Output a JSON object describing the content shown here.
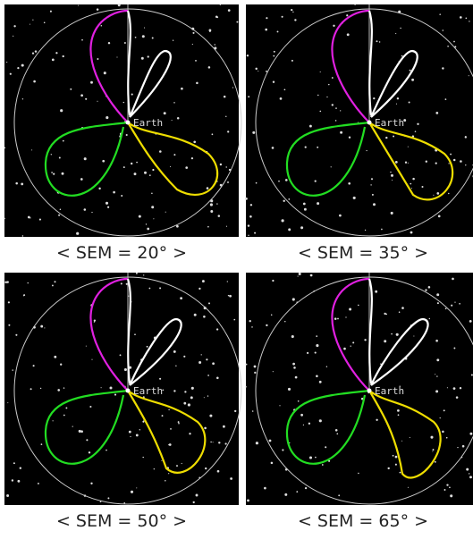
{
  "panels": [
    {
      "label": "Earth",
      "caption": "< SEM = 20° >"
    },
    {
      "label": "Earth",
      "caption": "< SEM = 35° >"
    },
    {
      "label": "Earth",
      "caption": "< SEM = 50° >"
    },
    {
      "label": "Earth",
      "caption": "< SEM = 65° >"
    }
  ]
}
